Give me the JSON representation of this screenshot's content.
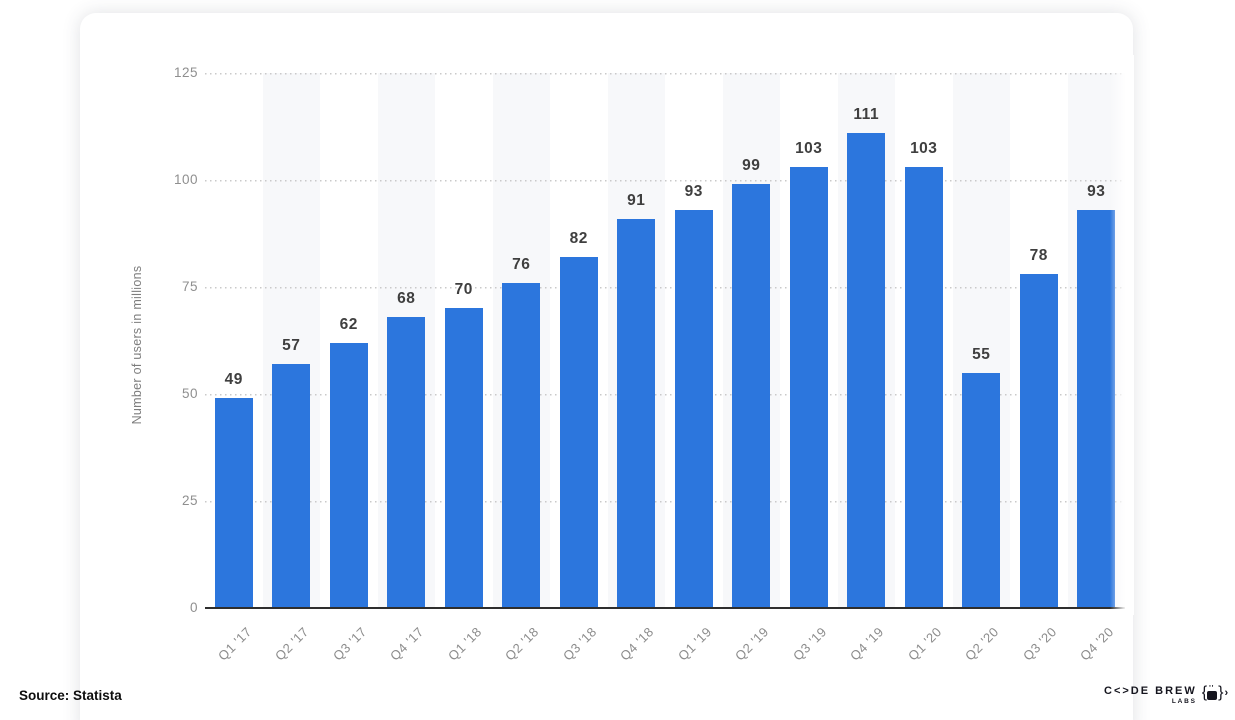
{
  "chart_data": {
    "type": "bar",
    "categories": [
      "Q1 '17",
      "Q2 '17",
      "Q3 '17",
      "Q4 '17",
      "Q1 '18",
      "Q2 '18",
      "Q3 '18",
      "Q4 '18",
      "Q1 '19",
      "Q2 '19",
      "Q3 '19",
      "Q4 '19",
      "Q1 '20",
      "Q2 '20",
      "Q3 '20",
      "Q4 '20"
    ],
    "values": [
      49,
      57,
      62,
      68,
      70,
      76,
      82,
      91,
      93,
      99,
      103,
      111,
      103,
      55,
      78,
      93
    ],
    "title": "",
    "xlabel": "",
    "ylabel": "Number of users in millions",
    "ylim": [
      0,
      125
    ],
    "yticks": [
      0,
      25,
      50,
      75,
      100,
      125
    ],
    "grid": "horizontal-dotted",
    "legend": "none",
    "data_labels": true,
    "colors": {
      "bar": "#2c76dd",
      "band": "#f7f8fa",
      "gridline": "#c9c9c9",
      "axis_line": "#2e2e2e",
      "tick_text": "#8f8f8f",
      "value_text": "#3f3f3f"
    }
  },
  "source": {
    "label": "Source: Statista"
  },
  "branding": {
    "name": "C<>DE BREW",
    "sub": "LABS",
    "icon_open_brace": "{",
    "icon_close_brace": "}",
    "icon_steam": "''",
    "chevron": "›"
  }
}
